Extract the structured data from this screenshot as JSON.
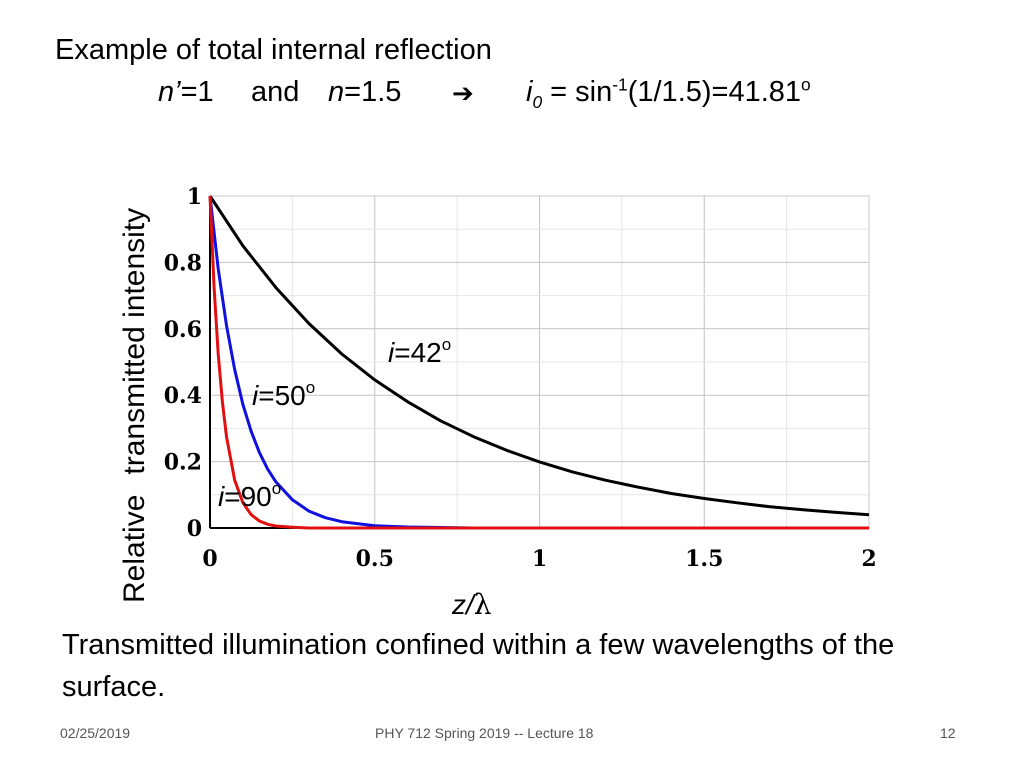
{
  "slide": {
    "title_line1": "Example of total internal reflection",
    "n_prime_var": "n’",
    "n_prime_val": "=1",
    "and_word": "and",
    "n_var": "n",
    "n_val": "=1.5",
    "arrow_icon": "right-arrow-icon",
    "i0_var": "i",
    "i0_sub": "0",
    "i0_eq": " = sin",
    "i0_sup": "-1",
    "i0_rest": "(1/1.5)=41.81",
    "i0_deg": "o",
    "caption": "Transmitted illumination confined within a few wavelengths of the surface.",
    "footer_date": "02/25/2019",
    "footer_center": "PHY 712 Spring 2019 -- Lecture 18",
    "footer_page": "12"
  },
  "chart_data": {
    "type": "line",
    "ylabel_part1": "Relative",
    "ylabel_part2": "transmitted intensity",
    "xlabel_var": "z/",
    "xlabel_sym": "λ",
    "xlim": [
      0,
      2
    ],
    "ylim": [
      0,
      1
    ],
    "xticks": [
      "0",
      "0.5",
      "1",
      "1.5",
      "2"
    ],
    "yticks": [
      "0",
      "0.2",
      "0.4",
      "0.6",
      "0.8",
      "1"
    ],
    "xtick_values": [
      0,
      0.5,
      1,
      1.5,
      2
    ],
    "ytick_values": [
      0,
      0.2,
      0.4,
      0.6,
      0.8,
      1
    ],
    "grid": true,
    "series": [
      {
        "label_var": "i",
        "label_val": "=42",
        "label_deg": "o",
        "color": "#000000",
        "x": [
          0,
          0.1,
          0.2,
          0.3,
          0.4,
          0.5,
          0.6,
          0.7,
          0.8,
          0.9,
          1.0,
          1.1,
          1.2,
          1.3,
          1.4,
          1.5,
          1.6,
          1.7,
          1.8,
          1.9,
          2.0
        ],
        "y": [
          1.0,
          0.85,
          0.724,
          0.616,
          0.524,
          0.446,
          0.38,
          0.323,
          0.275,
          0.234,
          0.199,
          0.169,
          0.144,
          0.123,
          0.104,
          0.089,
          0.076,
          0.064,
          0.055,
          0.047,
          0.04
        ]
      },
      {
        "label_var": "i",
        "label_val": "=50",
        "label_deg": "o",
        "color": "#1010e0",
        "x": [
          0,
          0.025,
          0.05,
          0.075,
          0.1,
          0.125,
          0.15,
          0.175,
          0.2,
          0.25,
          0.3,
          0.35,
          0.4,
          0.5,
          0.6,
          0.8,
          1.0,
          1.5,
          2.0
        ],
        "y": [
          1.0,
          0.781,
          0.61,
          0.477,
          0.372,
          0.291,
          0.227,
          0.177,
          0.139,
          0.085,
          0.051,
          0.031,
          0.019,
          0.007,
          0.003,
          0.0,
          0.0,
          0.0,
          0.0
        ]
      },
      {
        "label_var": "i",
        "label_val": "=90",
        "label_deg": "o",
        "color": "#e01010",
        "x": [
          0,
          0.0125,
          0.025,
          0.0375,
          0.05,
          0.075,
          0.1,
          0.125,
          0.15,
          0.175,
          0.2,
          0.25,
          0.3,
          0.4,
          0.5,
          1.0,
          1.5,
          2.0
        ],
        "y": [
          1.0,
          0.724,
          0.524,
          0.38,
          0.275,
          0.144,
          0.076,
          0.04,
          0.021,
          0.011,
          0.006,
          0.002,
          0.0,
          0.0,
          0.0,
          0.0,
          0.0,
          0.0
        ]
      }
    ]
  }
}
